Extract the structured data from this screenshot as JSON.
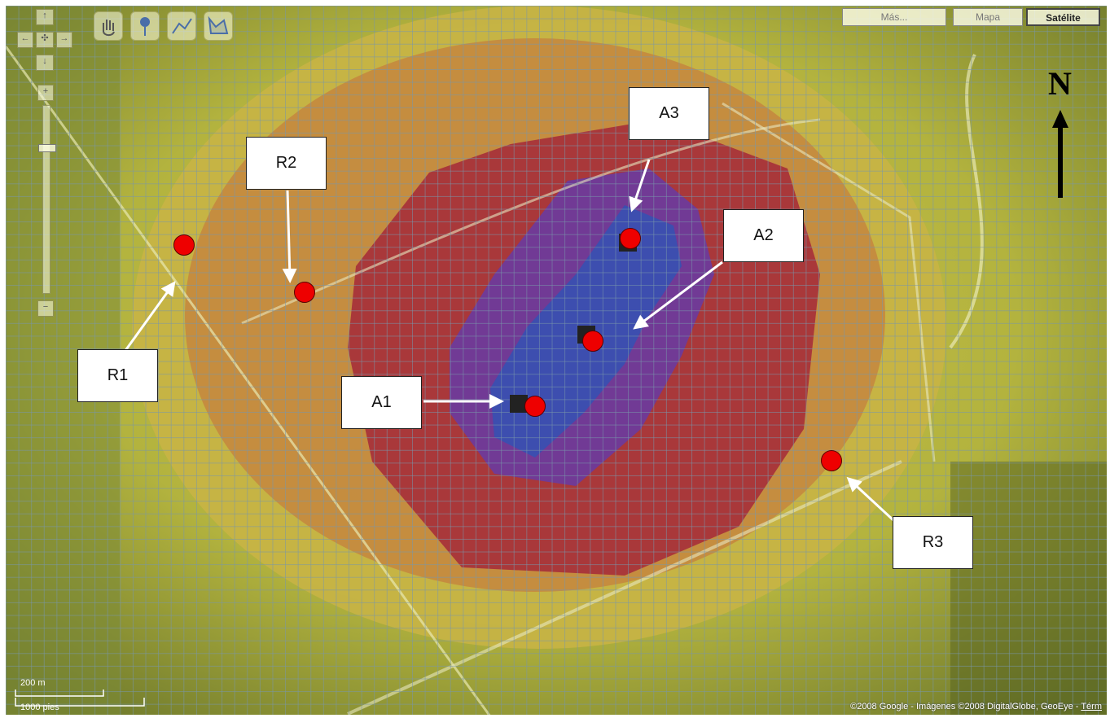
{
  "map_controls": {
    "pan_up": "↑",
    "pan_left": "←",
    "pan_center": "✣",
    "pan_right": "→",
    "pan_down": "↓",
    "zoom_in": "+",
    "zoom_out": "−",
    "icons": [
      "hand-icon",
      "placemark-icon",
      "polyline-icon",
      "polygon-icon"
    ]
  },
  "map_types": {
    "more": "Más...",
    "map": "Mapa",
    "satellite": "Satélite",
    "selected": "Satélite"
  },
  "labels": {
    "r1": "R1",
    "r2": "R2",
    "r3": "R3",
    "a1": "A1",
    "a2": "A2",
    "a3": "A3"
  },
  "north": "N",
  "scale": {
    "metric": "200 m",
    "imperial": "1000 pies"
  },
  "attribution": {
    "text": "©2008 Google - Imágenes ©2008 DigitalGlobe, GeoEye - ",
    "link": "Térm"
  },
  "colors": {
    "point": "#ee0000",
    "zone_high": "#3a4fb0",
    "zone_mid_high": "#6e3a9a",
    "zone_mid": "#a8323a",
    "zone_low": "#c58d45",
    "zone_min": "#c6c644"
  }
}
